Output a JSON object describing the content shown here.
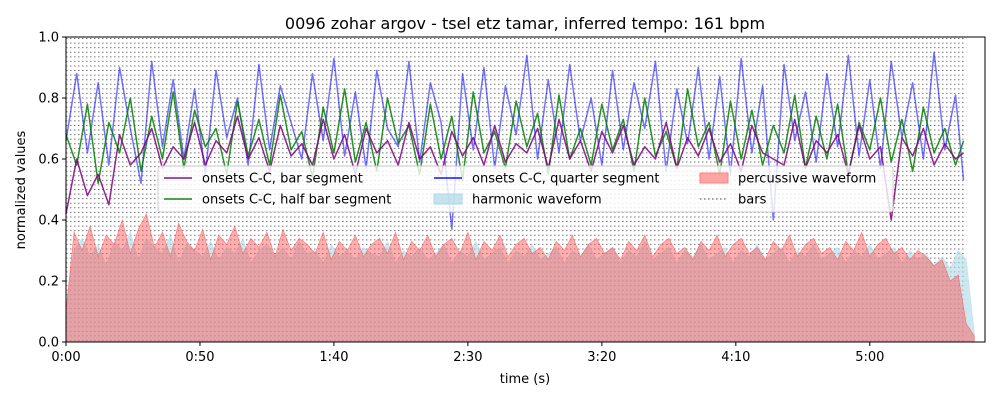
{
  "chart_data": {
    "type": "line",
    "title": "0096 zohar argov - tsel etz tamar, inferred tempo: 161 bpm",
    "xlabel": "time (s)",
    "ylabel": "normalized values",
    "xlim": [
      0,
      343
    ],
    "ylim": [
      0.0,
      1.0
    ],
    "x_ticks": [
      {
        "value": 0,
        "label": "0:00"
      },
      {
        "value": 50,
        "label": "0:50"
      },
      {
        "value": 100,
        "label": "1:40"
      },
      {
        "value": 150,
        "label": "2:30"
      },
      {
        "value": 200,
        "label": "3:20"
      },
      {
        "value": 250,
        "label": "4:10"
      },
      {
        "value": 300,
        "label": "5:00"
      }
    ],
    "y_ticks": [
      {
        "value": 0.0,
        "label": "0.0"
      },
      {
        "value": 0.2,
        "label": "0.2"
      },
      {
        "value": 0.4,
        "label": "0.4"
      },
      {
        "value": 0.6,
        "label": "0.6"
      },
      {
        "value": 0.8,
        "label": "0.8"
      },
      {
        "value": 1.0,
        "label": "1.0"
      }
    ],
    "bars_grid": {
      "start": 0,
      "end": 336,
      "y_levels": [
        0.005,
        0.02,
        0.035,
        0.05,
        0.065,
        0.08,
        0.095,
        0.11,
        0.125,
        0.14,
        0.155,
        0.17,
        0.185,
        0.2,
        0.215,
        0.23,
        0.245,
        0.26,
        0.275,
        0.29,
        0.305,
        0.32,
        0.335,
        0.35,
        0.365,
        0.38,
        0.395,
        0.41,
        0.425,
        0.44,
        0.455,
        0.47,
        0.485,
        0.5,
        0.515,
        0.53,
        0.545,
        0.56,
        0.575,
        0.59,
        0.605,
        0.62,
        0.635,
        0.65,
        0.665,
        0.68,
        0.695,
        0.71,
        0.725,
        0.74,
        0.755,
        0.77,
        0.785,
        0.8,
        0.815,
        0.83,
        0.845,
        0.86,
        0.875,
        0.89,
        0.905,
        0.92,
        0.935,
        0.95,
        0.965,
        0.98,
        0.995
      ]
    },
    "legend": {
      "placement": "center",
      "entries": [
        {
          "label": "onsets C-C, bar segment",
          "color": "#800080",
          "style": "line"
        },
        {
          "label": "onsets C-C, half bar segment",
          "color": "#008000",
          "style": "line"
        },
        {
          "label": "onsets C-C, quarter segment",
          "color": "#0000ff",
          "style": "line"
        },
        {
          "label": "harmonic waveform",
          "color": "#add8e6",
          "style": "patch"
        },
        {
          "label": "percussive waveform",
          "color": "#ff7f7f",
          "style": "patch"
        },
        {
          "label": "bars",
          "color": "#808080",
          "style": "dotted"
        }
      ]
    },
    "series": [
      {
        "name": "onsets C-C, quarter segment",
        "color": "#0000ff",
        "opacity": 0.55,
        "width": 1.5,
        "x": [
          0,
          4,
          8,
          12,
          16,
          20,
          24,
          28,
          32,
          36,
          40,
          44,
          48,
          52,
          56,
          60,
          64,
          68,
          72,
          76,
          80,
          84,
          88,
          92,
          96,
          100,
          104,
          108,
          112,
          116,
          120,
          124,
          128,
          132,
          136,
          140,
          144,
          148,
          152,
          156,
          160,
          164,
          168,
          172,
          176,
          180,
          184,
          188,
          192,
          196,
          200,
          204,
          208,
          212,
          216,
          220,
          224,
          228,
          232,
          236,
          240,
          244,
          248,
          252,
          256,
          260,
          264,
          268,
          272,
          276,
          280,
          284,
          288,
          292,
          296,
          300,
          304,
          308,
          312,
          316,
          320,
          324,
          328,
          332,
          335
        ],
        "values": [
          0.66,
          0.88,
          0.62,
          0.85,
          0.58,
          0.9,
          0.7,
          0.52,
          0.92,
          0.64,
          0.86,
          0.6,
          0.83,
          0.55,
          0.89,
          0.67,
          0.8,
          0.58,
          0.91,
          0.63,
          0.84,
          0.72,
          0.6,
          0.88,
          0.66,
          0.93,
          0.61,
          0.82,
          0.57,
          0.89,
          0.7,
          0.64,
          0.92,
          0.59,
          0.85,
          0.72,
          0.37,
          0.88,
          0.63,
          0.9,
          0.57,
          0.84,
          0.68,
          0.94,
          0.6,
          0.86,
          0.62,
          0.91,
          0.66,
          0.8,
          0.58,
          0.89,
          0.63,
          0.85,
          0.7,
          0.92,
          0.56,
          0.83,
          0.65,
          0.9,
          0.6,
          0.87,
          0.55,
          0.93,
          0.62,
          0.84,
          0.4,
          0.91,
          0.66,
          0.82,
          0.59,
          0.88,
          0.64,
          0.94,
          0.61,
          0.86,
          0.57,
          0.92,
          0.67,
          0.85,
          0.6,
          0.95,
          0.63,
          0.81,
          0.53
        ]
      },
      {
        "name": "onsets C-C, half bar segment",
        "color": "#008000",
        "opacity": 0.85,
        "width": 1.5,
        "x": [
          0,
          4,
          8,
          12,
          16,
          20,
          24,
          28,
          32,
          36,
          40,
          44,
          48,
          52,
          56,
          60,
          64,
          68,
          72,
          76,
          80,
          84,
          88,
          92,
          96,
          100,
          104,
          108,
          112,
          116,
          120,
          124,
          128,
          132,
          136,
          140,
          144,
          148,
          152,
          156,
          160,
          164,
          168,
          172,
          176,
          180,
          184,
          188,
          192,
          196,
          200,
          204,
          208,
          212,
          216,
          220,
          224,
          228,
          232,
          236,
          240,
          244,
          248,
          252,
          256,
          260,
          264,
          268,
          272,
          276,
          280,
          284,
          288,
          292,
          296,
          300,
          304,
          308,
          312,
          316,
          320,
          324,
          328,
          332,
          335
        ],
        "values": [
          0.68,
          0.58,
          0.78,
          0.52,
          0.72,
          0.62,
          0.8,
          0.56,
          0.74,
          0.6,
          0.82,
          0.57,
          0.76,
          0.64,
          0.7,
          0.55,
          0.79,
          0.61,
          0.73,
          0.58,
          0.81,
          0.63,
          0.69,
          0.54,
          0.77,
          0.62,
          0.83,
          0.59,
          0.72,
          0.56,
          0.8,
          0.65,
          0.71,
          0.55,
          0.78,
          0.6,
          0.74,
          0.53,
          0.82,
          0.62,
          0.69,
          0.57,
          0.79,
          0.64,
          0.75,
          0.55,
          0.81,
          0.6,
          0.7,
          0.58,
          0.78,
          0.63,
          0.73,
          0.56,
          0.8,
          0.61,
          0.69,
          0.57,
          0.83,
          0.64,
          0.72,
          0.55,
          0.79,
          0.6,
          0.76,
          0.58,
          0.71,
          0.62,
          0.81,
          0.57,
          0.74,
          0.6,
          0.78,
          0.55,
          0.72,
          0.63,
          0.8,
          0.59,
          0.73,
          0.56,
          0.77,
          0.62,
          0.7,
          0.58,
          0.66
        ]
      },
      {
        "name": "onsets C-C, bar segment",
        "color": "#800080",
        "opacity": 0.85,
        "width": 1.5,
        "x": [
          0,
          4,
          8,
          12,
          16,
          20,
          24,
          28,
          32,
          36,
          40,
          44,
          48,
          52,
          56,
          60,
          64,
          68,
          72,
          76,
          80,
          84,
          88,
          92,
          96,
          100,
          104,
          108,
          112,
          116,
          120,
          124,
          128,
          132,
          136,
          140,
          144,
          148,
          152,
          156,
          160,
          164,
          168,
          172,
          176,
          180,
          184,
          188,
          192,
          196,
          200,
          204,
          208,
          212,
          216,
          220,
          224,
          228,
          232,
          236,
          240,
          244,
          248,
          252,
          256,
          260,
          264,
          268,
          272,
          276,
          280,
          284,
          288,
          292,
          296,
          300,
          304,
          308,
          312,
          316,
          320,
          324,
          328,
          332,
          335
        ],
        "values": [
          0.42,
          0.6,
          0.48,
          0.55,
          0.45,
          0.68,
          0.58,
          0.62,
          0.7,
          0.57,
          0.64,
          0.6,
          0.72,
          0.58,
          0.66,
          0.62,
          0.74,
          0.6,
          0.67,
          0.56,
          0.71,
          0.61,
          0.65,
          0.58,
          0.73,
          0.6,
          0.68,
          0.55,
          0.7,
          0.62,
          0.66,
          0.58,
          0.72,
          0.6,
          0.64,
          0.55,
          0.69,
          0.61,
          0.67,
          0.58,
          0.71,
          0.59,
          0.65,
          0.62,
          0.7,
          0.57,
          0.73,
          0.6,
          0.66,
          0.56,
          0.69,
          0.62,
          0.71,
          0.58,
          0.64,
          0.6,
          0.72,
          0.57,
          0.67,
          0.61,
          0.7,
          0.59,
          0.65,
          0.56,
          0.71,
          0.62,
          0.6,
          0.58,
          0.73,
          0.57,
          0.66,
          0.62,
          0.68,
          0.55,
          0.71,
          0.6,
          0.64,
          0.4,
          0.67,
          0.61,
          0.7,
          0.58,
          0.65,
          0.6,
          0.62
        ]
      }
    ],
    "areas": [
      {
        "name": "harmonic waveform",
        "color": "#add8e6",
        "opacity": 0.6,
        "x": [
          0,
          3,
          6,
          9,
          12,
          15,
          18,
          21,
          24,
          27,
          30,
          33,
          36,
          39,
          42,
          45,
          48,
          51,
          54,
          57,
          60,
          63,
          66,
          69,
          72,
          75,
          78,
          81,
          84,
          87,
          90,
          93,
          96,
          99,
          102,
          105,
          108,
          111,
          114,
          117,
          120,
          123,
          126,
          129,
          132,
          135,
          138,
          141,
          144,
          147,
          150,
          153,
          156,
          159,
          162,
          165,
          168,
          171,
          174,
          177,
          180,
          183,
          186,
          189,
          192,
          195,
          198,
          201,
          204,
          207,
          210,
          213,
          216,
          219,
          222,
          225,
          228,
          231,
          234,
          237,
          240,
          243,
          246,
          249,
          252,
          255,
          258,
          261,
          264,
          267,
          270,
          273,
          276,
          279,
          282,
          285,
          288,
          291,
          294,
          297,
          300,
          303,
          306,
          309,
          312,
          315,
          318,
          321,
          324,
          327,
          330,
          333,
          336,
          339
        ],
        "values": [
          0.12,
          0.3,
          0.34,
          0.28,
          0.32,
          0.25,
          0.33,
          0.3,
          0.36,
          0.27,
          0.34,
          0.31,
          0.29,
          0.35,
          0.26,
          0.32,
          0.3,
          0.28,
          0.33,
          0.27,
          0.31,
          0.29,
          0.34,
          0.26,
          0.3,
          0.32,
          0.28,
          0.31,
          0.27,
          0.33,
          0.29,
          0.3,
          0.26,
          0.32,
          0.28,
          0.3,
          0.27,
          0.31,
          0.29,
          0.28,
          0.33,
          0.26,
          0.3,
          0.28,
          0.31,
          0.27,
          0.29,
          0.32,
          0.26,
          0.3,
          0.28,
          0.33,
          0.27,
          0.29,
          0.31,
          0.26,
          0.3,
          0.28,
          0.32,
          0.27,
          0.29,
          0.31,
          0.26,
          0.3,
          0.28,
          0.32,
          0.27,
          0.29,
          0.31,
          0.26,
          0.3,
          0.28,
          0.33,
          0.27,
          0.29,
          0.31,
          0.26,
          0.3,
          0.28,
          0.32,
          0.27,
          0.29,
          0.31,
          0.26,
          0.3,
          0.28,
          0.32,
          0.27,
          0.29,
          0.31,
          0.26,
          0.3,
          0.28,
          0.32,
          0.27,
          0.29,
          0.31,
          0.26,
          0.3,
          0.28,
          0.32,
          0.27,
          0.29,
          0.31,
          0.26,
          0.3,
          0.27,
          0.29,
          0.25,
          0.28,
          0.24,
          0.3,
          0.27,
          0.03
        ]
      },
      {
        "name": "percussive waveform",
        "color": "#ff4d4d",
        "opacity": 0.45,
        "x": [
          0,
          3,
          6,
          9,
          12,
          15,
          18,
          21,
          24,
          27,
          30,
          33,
          36,
          39,
          42,
          45,
          48,
          51,
          54,
          57,
          60,
          63,
          66,
          69,
          72,
          75,
          78,
          81,
          84,
          87,
          90,
          93,
          96,
          99,
          102,
          105,
          108,
          111,
          114,
          117,
          120,
          123,
          126,
          129,
          132,
          135,
          138,
          141,
          144,
          147,
          150,
          153,
          156,
          159,
          162,
          165,
          168,
          171,
          174,
          177,
          180,
          183,
          186,
          189,
          192,
          195,
          198,
          201,
          204,
          207,
          210,
          213,
          216,
          219,
          222,
          225,
          228,
          231,
          234,
          237,
          240,
          243,
          246,
          249,
          252,
          255,
          258,
          261,
          264,
          267,
          270,
          273,
          276,
          279,
          282,
          285,
          288,
          291,
          294,
          297,
          300,
          303,
          306,
          309,
          312,
          315,
          318,
          321,
          324,
          327,
          330,
          333,
          336,
          339
        ],
        "values": [
          0.1,
          0.36,
          0.3,
          0.38,
          0.28,
          0.35,
          0.32,
          0.4,
          0.29,
          0.37,
          0.42,
          0.31,
          0.36,
          0.28,
          0.39,
          0.33,
          0.3,
          0.37,
          0.27,
          0.35,
          0.32,
          0.38,
          0.29,
          0.34,
          0.31,
          0.36,
          0.28,
          0.37,
          0.3,
          0.34,
          0.32,
          0.29,
          0.36,
          0.27,
          0.33,
          0.3,
          0.35,
          0.28,
          0.32,
          0.34,
          0.29,
          0.36,
          0.27,
          0.33,
          0.3,
          0.35,
          0.28,
          0.32,
          0.34,
          0.29,
          0.36,
          0.27,
          0.33,
          0.3,
          0.35,
          0.28,
          0.32,
          0.34,
          0.29,
          0.31,
          0.27,
          0.33,
          0.3,
          0.35,
          0.28,
          0.32,
          0.34,
          0.29,
          0.31,
          0.27,
          0.33,
          0.3,
          0.35,
          0.28,
          0.32,
          0.34,
          0.29,
          0.31,
          0.27,
          0.33,
          0.3,
          0.35,
          0.28,
          0.32,
          0.34,
          0.29,
          0.31,
          0.27,
          0.33,
          0.3,
          0.35,
          0.28,
          0.32,
          0.34,
          0.29,
          0.31,
          0.27,
          0.33,
          0.3,
          0.36,
          0.28,
          0.32,
          0.34,
          0.29,
          0.31,
          0.27,
          0.3,
          0.28,
          0.25,
          0.27,
          0.2,
          0.22,
          0.06,
          0.02
        ]
      }
    ]
  }
}
